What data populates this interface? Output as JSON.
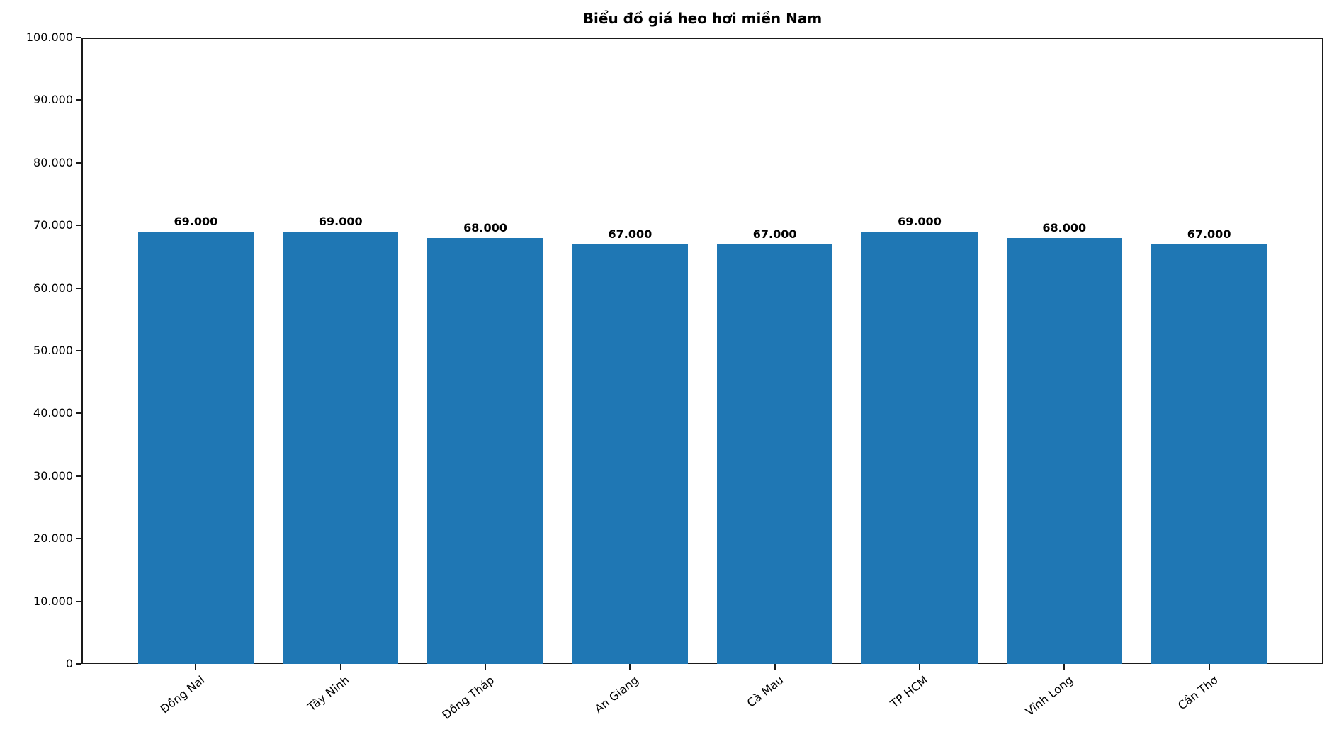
{
  "chart_data": {
    "type": "bar",
    "title": "Biểu đồ giá heo hơi miền Nam",
    "categories": [
      "Đồng Nai",
      "Tây Ninh",
      "Đồng Tháp",
      "An Giang",
      "Cà Mau",
      "TP HCM",
      "Vĩnh Long",
      "Cần Thơ"
    ],
    "values": [
      69000,
      69000,
      68000,
      67000,
      67000,
      69000,
      68000,
      67000
    ],
    "bar_labels": [
      "69.000",
      "69.000",
      "68.000",
      "67.000",
      "67.000",
      "69.000",
      "68.000",
      "67.000"
    ],
    "xlabel": "",
    "ylabel": "",
    "ylim": [
      0,
      100000
    ],
    "ytick_step": 10000,
    "ytick_labels": [
      "0",
      "10.000",
      "20.000",
      "30.000",
      "40.000",
      "50.000",
      "60.000",
      "70.000",
      "80.000",
      "90.000",
      "100.000"
    ],
    "bar_color": "#1f77b4",
    "axis_color": "#1a1a1a",
    "grid": false,
    "legend_position": "none",
    "x_label_rotation_deg": 38
  }
}
